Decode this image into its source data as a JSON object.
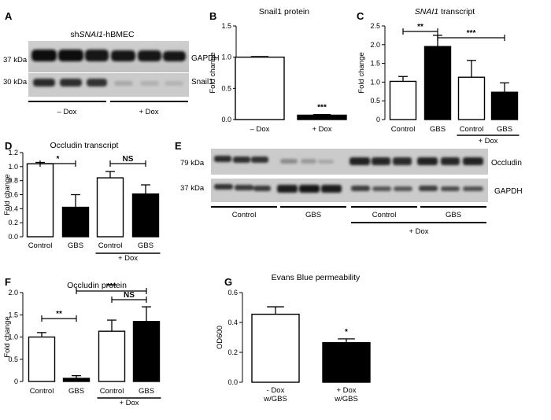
{
  "panels": {
    "A": {
      "label": "A",
      "title_prefix": "sh",
      "title_italic": "SNAI1",
      "title_suffix": "-hBMEC",
      "blots": [
        {
          "mw": "37 kDa",
          "protein": "GAPDH"
        },
        {
          "mw": "30 kDa",
          "protein": "Snail1"
        }
      ],
      "groups": [
        "– Dox",
        "+ Dox"
      ]
    },
    "E": {
      "label": "E",
      "blots": [
        {
          "mw": "79 kDa",
          "protein": "Occludin"
        },
        {
          "mw": "37 kDa",
          "protein": "GAPDH"
        }
      ],
      "groups": [
        "Control",
        "GBS",
        "Control",
        "GBS"
      ],
      "dox_label": "+ Dox"
    }
  },
  "chart_data": [
    {
      "panel": "B",
      "type": "bar",
      "title": "Snail1 protein",
      "ylabel": "Fold change",
      "ylim": [
        0,
        1.5
      ],
      "yticks": [
        "0.0",
        "0.5",
        "1.0",
        "1.5"
      ],
      "categories": [
        "– Dox",
        "+ Dox"
      ],
      "values": [
        1.0,
        0.07
      ],
      "errors": [
        0.01,
        0.01
      ],
      "fills": [
        "#ffffff",
        "#000000"
      ],
      "significance": [
        {
          "text": "***",
          "bar": 1
        }
      ]
    },
    {
      "panel": "C",
      "type": "bar",
      "title_italic": "SNAI1",
      "title_suffix": " transcript",
      "ylabel": "Fold change",
      "ylim": [
        0,
        2.5
      ],
      "yticks": [
        "0",
        "0.5",
        "1.0",
        "1.5",
        "2.0",
        "2.5"
      ],
      "categories": [
        "Control",
        "GBS",
        "Control",
        "GBS"
      ],
      "values": [
        1.02,
        1.95,
        1.13,
        0.73
      ],
      "errors": [
        0.13,
        0.3,
        0.45,
        0.25
      ],
      "fills": [
        "#ffffff",
        "#000000",
        "#ffffff",
        "#000000"
      ],
      "group_label": "+ Dox",
      "comparisons": [
        {
          "from": 0,
          "to": 1,
          "text": "**"
        },
        {
          "from": 1,
          "to": 3,
          "text": "***"
        }
      ]
    },
    {
      "panel": "D",
      "type": "bar",
      "title": "Occludin transcript",
      "ylabel": "Fold change",
      "ylim": [
        0,
        1.2
      ],
      "yticks": [
        "0.0",
        "0.2",
        "0.4",
        "0.6",
        "0.8",
        "1.0",
        "1.2"
      ],
      "categories": [
        "Control",
        "GBS",
        "Control",
        "GBS"
      ],
      "values": [
        1.04,
        0.42,
        0.84,
        0.61
      ],
      "errors": [
        0.02,
        0.18,
        0.09,
        0.13
      ],
      "fills": [
        "#ffffff",
        "#000000",
        "#ffffff",
        "#000000"
      ],
      "group_label": "+ Dox",
      "comparisons": [
        {
          "from": 0,
          "to": 1,
          "text": "*"
        },
        {
          "from": 2,
          "to": 3,
          "text": "NS"
        }
      ]
    },
    {
      "panel": "F",
      "type": "bar",
      "title": "Occludin protein",
      "ylabel": "Fold change",
      "ylim": [
        0,
        2.0
      ],
      "yticks": [
        "0",
        "0.5",
        "1.0",
        "1.5",
        "2.0"
      ],
      "categories": [
        "Control",
        "GBS",
        "Control",
        "GBS"
      ],
      "values": [
        1.0,
        0.07,
        1.13,
        1.35
      ],
      "errors": [
        0.1,
        0.06,
        0.25,
        0.33
      ],
      "fills": [
        "#ffffff",
        "#000000",
        "#ffffff",
        "#000000"
      ],
      "group_label": "+ Dox",
      "comparisons": [
        {
          "from": 0,
          "to": 1,
          "text": "**"
        },
        {
          "from": 1,
          "to": 3,
          "text": "***"
        },
        {
          "from": 2,
          "to": 3,
          "text": "NS"
        }
      ]
    },
    {
      "panel": "G",
      "type": "bar",
      "title": "Evans Blue permeability",
      "ylabel": "OD600",
      "ylim": [
        0,
        0.6
      ],
      "yticks": [
        "0.0",
        "0.2",
        "0.4",
        "0.6"
      ],
      "categories": [
        [
          "- Dox",
          "w/GBS"
        ],
        [
          "+ Dox",
          "w/GBS"
        ]
      ],
      "values": [
        0.455,
        0.265
      ],
      "errors": [
        0.05,
        0.025
      ],
      "fills": [
        "#ffffff",
        "#000000"
      ],
      "significance": [
        {
          "text": "*",
          "bar": 1
        }
      ]
    }
  ]
}
